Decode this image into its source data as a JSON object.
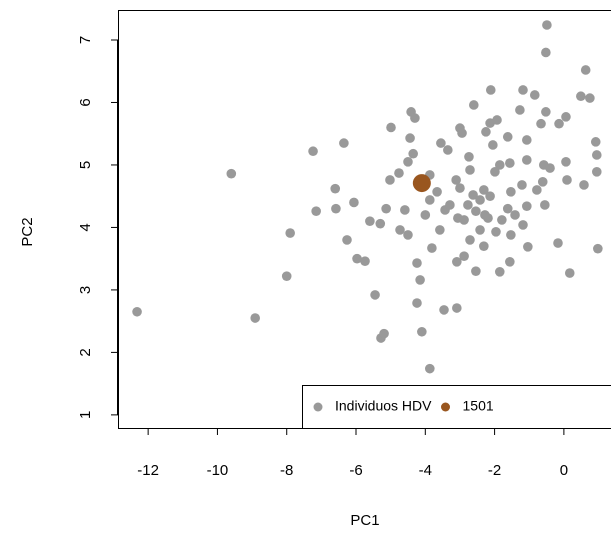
{
  "chart_data": {
    "type": "scatter",
    "x_label": "PC1",
    "y_label": "PC2",
    "xlim": [
      -12.87,
      1.36
    ],
    "ylim": [
      0.79,
      7.48
    ],
    "xticks": [
      -12,
      -10,
      -8,
      -6,
      -4,
      -2,
      0
    ],
    "yticks": [
      1,
      2,
      3,
      4,
      5,
      6,
      7
    ],
    "grid": false,
    "legend": "bottom-right",
    "series": [
      {
        "name": "Individuos HDV",
        "color": "#999999",
        "x": [
          -12.32,
          -9.6,
          -8.91,
          -7.9,
          -8.0,
          -7.24,
          -7.15,
          -6.6,
          -6.35,
          -6.58,
          -6.26,
          -6.06,
          -5.97,
          -5.74,
          -5.45,
          -5.28,
          -5.19,
          -4.99,
          -5.6,
          -5.3,
          -5.13,
          -5.02,
          -4.76,
          -4.41,
          -4.3,
          -4.44,
          -4.35,
          -4.5,
          -4.59,
          -4.73,
          -4.5,
          -4.24,
          -4.15,
          -4.24,
          -4.1,
          -3.87,
          -3.81,
          -3.46,
          -3.09,
          -3.66,
          -3.43,
          -3.55,
          -3.35,
          -3.0,
          -2.94,
          -2.74,
          -2.71,
          -2.6,
          -3.11,
          -3.0,
          -3.06,
          -2.88,
          -2.77,
          -2.62,
          -2.54,
          -2.42,
          -2.31,
          -2.28,
          -2.42,
          -2.13,
          -2.11,
          -2.25,
          -2.05,
          -1.93,
          -1.85,
          -1.99,
          -2.13,
          -1.96,
          -2.31,
          -2.88,
          -3.09,
          -1.85,
          -2.54,
          -1.62,
          -1.56,
          -1.53,
          -1.62,
          -1.53,
          -1.56,
          -1.27,
          -1.18,
          -1.07,
          -1.07,
          -1.21,
          -1.07,
          -1.18,
          -1.04,
          -0.84,
          -0.66,
          -0.58,
          -0.61,
          -0.55,
          -0.49,
          -0.52,
          -0.52,
          -0.17,
          -0.14,
          0.06,
          0.06,
          0.09,
          0.17,
          0.49,
          0.63,
          0.58,
          0.92,
          0.95,
          0.95,
          0.98,
          -0.4,
          -0.78,
          0.75,
          -3.87,
          -4.0,
          -3.58,
          -3.29,
          -2.19,
          -1.79,
          -1.41,
          -2.71,
          -3.87
        ],
        "values": [
          2.65,
          4.86,
          2.55,
          3.91,
          3.22,
          5.22,
          4.26,
          4.62,
          5.35,
          4.3,
          3.8,
          4.4,
          3.5,
          3.46,
          2.92,
          2.23,
          2.3,
          5.6,
          4.1,
          4.06,
          4.3,
          4.76,
          4.87,
          5.85,
          5.75,
          5.43,
          5.18,
          5.05,
          4.28,
          3.96,
          3.88,
          3.43,
          3.16,
          2.79,
          2.33,
          1.74,
          3.67,
          2.68,
          2.71,
          4.57,
          4.28,
          5.35,
          5.24,
          5.59,
          5.51,
          5.13,
          4.92,
          5.96,
          4.76,
          4.63,
          4.15,
          4.12,
          4.36,
          4.52,
          4.26,
          4.44,
          4.6,
          4.2,
          3.96,
          5.67,
          6.2,
          5.53,
          5.32,
          5.72,
          5.0,
          4.89,
          4.5,
          3.93,
          3.7,
          3.54,
          3.45,
          3.29,
          3.3,
          5.45,
          5.03,
          4.57,
          4.3,
          3.88,
          3.45,
          5.88,
          6.2,
          5.4,
          5.08,
          4.68,
          4.34,
          4.04,
          3.69,
          6.12,
          5.66,
          5.0,
          4.73,
          4.36,
          7.24,
          6.8,
          5.85,
          3.75,
          5.66,
          5.77,
          5.05,
          4.76,
          3.27,
          6.1,
          6.52,
          4.68,
          5.37,
          5.16,
          4.89,
          3.66,
          4.95,
          4.6,
          6.07,
          4.44,
          4.2,
          3.96,
          4.36,
          4.15,
          4.12,
          4.2,
          3.8,
          4.84
        ]
      },
      {
        "name": "1501",
        "color": "#99561f",
        "x": [
          -4.1
        ],
        "values": [
          4.71
        ]
      }
    ]
  }
}
